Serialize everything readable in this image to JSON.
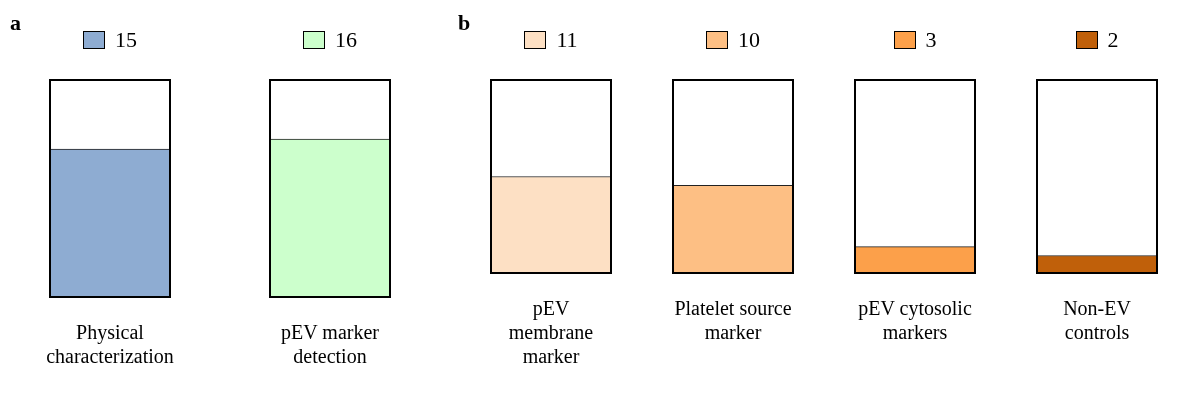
{
  "chart_data": [
    {
      "type": "bar",
      "title": "a",
      "categories": [
        "Physical characterization",
        "pEV marker detection"
      ],
      "values": [
        15,
        16
      ],
      "colors": [
        "#8eacd2",
        "#ccffcc"
      ],
      "ylim": [
        0,
        22
      ],
      "tick_labels": "x",
      "data_labels": true,
      "grid": false,
      "legend": false
    },
    {
      "type": "bar",
      "title": "b",
      "categories": [
        "pEV membrane marker",
        "Platelet source marker",
        "pEV cytosolic markers",
        "Non-EV controls"
      ],
      "values": [
        11,
        10,
        3,
        2
      ],
      "colors": [
        "#fde0c4",
        "#fdbf84",
        "#fca04a",
        "#c0600a"
      ],
      "ylim": [
        0,
        22
      ],
      "tick_labels": "x",
      "data_labels": true,
      "grid": false,
      "legend": false
    }
  ]
}
